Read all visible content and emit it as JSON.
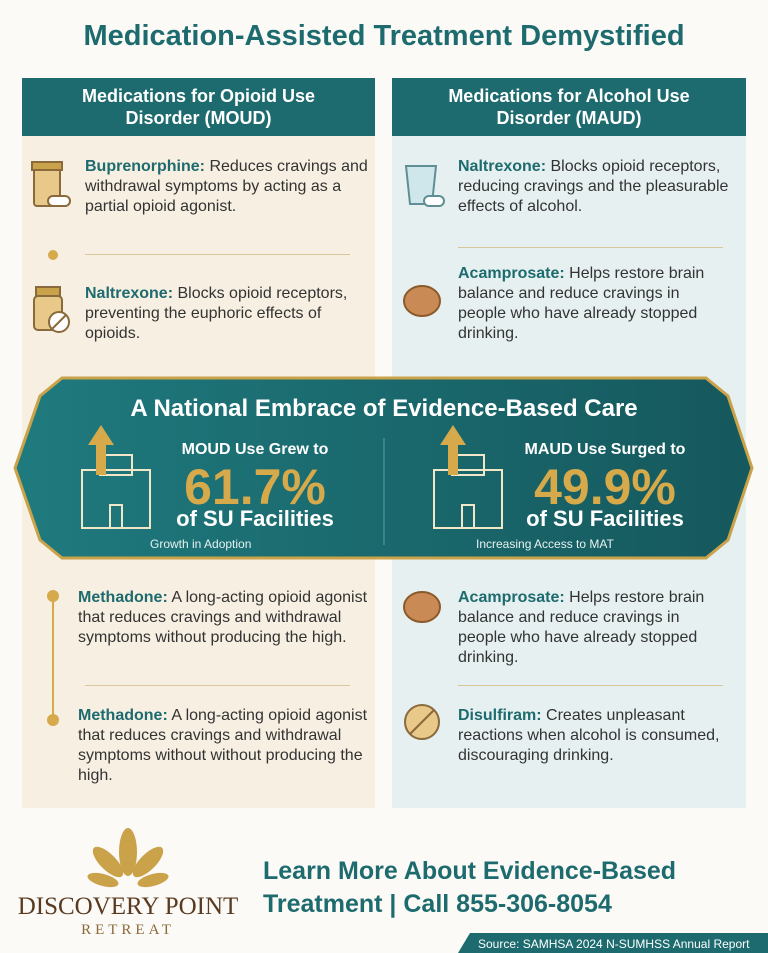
{
  "title": "Medication-Assisted Treatment Demystified",
  "columns": [
    {
      "header": "Medications for Opioid Use Disorder (MOUD)",
      "items": [
        {
          "name": "Buprenorphine:",
          "text": "Reduces cravings and withdrawal symptoms by acting as a partial opioid agonist."
        },
        {
          "name": "Naltrexone:",
          "text": "Blocks opioid receptors, preventing the euphoric effects of opioids."
        },
        {
          "name": "Methadone:",
          "text": "A long-acting opioid agonist that reduces cravings and withdrawal symptoms without producing the high."
        },
        {
          "name": "Methadone:",
          "text": "A long-acting opioid agonist that reduces cravings and withdrawal symptoms without without producing the high."
        }
      ]
    },
    {
      "header": "Medications for Alcohol Use Disorder (MAUD)",
      "items": [
        {
          "name": "Naltrexone:",
          "text": "Blocks opioid receptors, reducing cravings and the pleasurable effects of alcohol."
        },
        {
          "name": "Acamprosate:",
          "text": "Helps restore brain balance and reduce cravings in people who have already stopped drinking."
        },
        {
          "name": "Acamprosate:",
          "text": "Helps restore brain balance and reduce cravings in people who have already stopped drinking."
        },
        {
          "name": "Disulfiram:",
          "text": "Creates unpleasant reactions when alcohol is consumed, discouraging drinking."
        }
      ]
    }
  ],
  "banner": {
    "title": "A National Embrace of Evidence-Based Care",
    "stats": [
      {
        "label": "MOUD Use Grew to",
        "value": "61.7%",
        "unit": "of SU Facilities",
        "caption": "Growth in Adoption"
      },
      {
        "label": "MAUD Use Surged to",
        "value": "49.9%",
        "unit": "of SU Facilities",
        "caption": "Increasing Access to MAT"
      }
    ]
  },
  "footer": {
    "brand": "DISCOVERY POINT",
    "brand_sub": "RETREAT",
    "cta": "Learn More About Evidence-Based Treatment | Call 855-306-8054",
    "source": "Source: SAMHSA 2024 N-SUMHSS Annual Report"
  }
}
